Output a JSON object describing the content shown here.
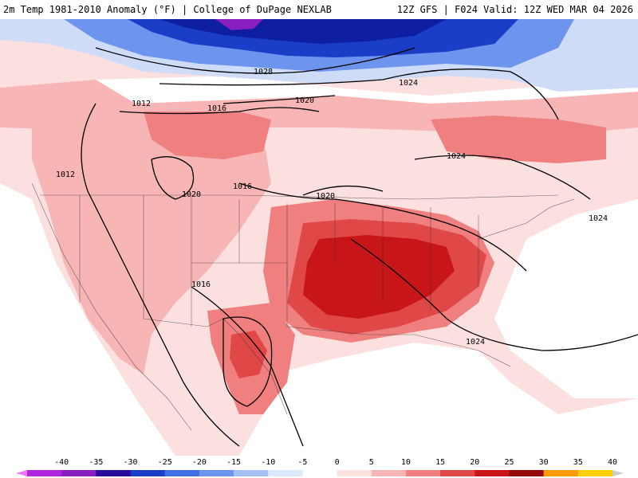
{
  "header": {
    "left": "2m Temp 1981-2010 Anomaly (°F) | College of DuPage NEXLAB",
    "right": "12Z GFS | F024 Valid: 12Z WED MAR 04 2026"
  },
  "isobar_labels": [
    "1028",
    "1024",
    "1020",
    "1016",
    "1012",
    "1012",
    "1020",
    "1016",
    "1020",
    "1024",
    "1024",
    "1016",
    "1024"
  ],
  "colorbar": {
    "ticks": [
      "-40",
      "-35",
      "-30",
      "-25",
      "-20",
      "-15",
      "-10",
      "-5",
      "0",
      "5",
      "10",
      "15",
      "20",
      "25",
      "30",
      "35",
      "40"
    ],
    "colors": [
      "#e879f9",
      "#b026e0",
      "#8a1fc0",
      "#2a0a9a",
      "#1a3ec8",
      "#3f6fe0",
      "#6d95ee",
      "#a5c0f5",
      "#dce8fb",
      "#ffffff",
      "#fde2e2",
      "#f8b5b5",
      "#f07f80",
      "#e04848",
      "#c81518",
      "#960a0c",
      "#ff9a00",
      "#ffd000",
      "#cccccc"
    ]
  }
}
